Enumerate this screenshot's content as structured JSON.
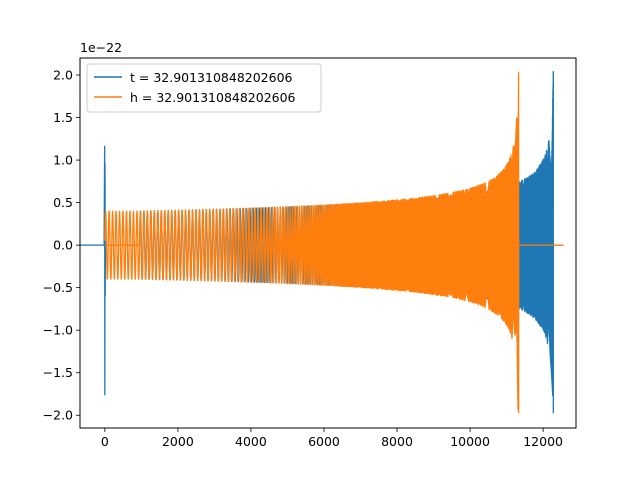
{
  "chart_data": {
    "type": "line",
    "title": "",
    "xlabel": "",
    "ylabel": "",
    "y_offset_label": "1e−22",
    "xlim": [
      -680,
      12900
    ],
    "ylim": [
      -2.15,
      2.2
    ],
    "x_ticks": [
      0,
      2000,
      4000,
      6000,
      8000,
      10000,
      12000
    ],
    "x_tick_labels": [
      "0",
      "2000",
      "4000",
      "6000",
      "8000",
      "10000",
      "12000"
    ],
    "y_ticks": [
      -2.0,
      -1.5,
      -1.0,
      -0.5,
      0.0,
      0.5,
      1.0,
      1.5,
      2.0
    ],
    "y_tick_labels": [
      "−2.0",
      "−1.5",
      "−1.0",
      "−0.5",
      "0.0",
      "0.5",
      "1.0",
      "1.5",
      "2.0"
    ],
    "grid": false,
    "legend_position": "top-left",
    "series": [
      {
        "name": "t = 32.901310848202606",
        "color": "#1f77b4",
        "description_points": {
          "initial_spike_x": 0,
          "initial_spike_max": 1.16,
          "initial_spike_min": -1.76,
          "start_x": 950,
          "base_amplitude": 0.4,
          "merger_x": 12280,
          "merger_peak": 2.04,
          "merger_trough": -1.97,
          "end_x": 12560,
          "end_value": 0.0
        }
      },
      {
        "name": "h = 32.901310848202606",
        "color": "#ff7f0e",
        "description_points": {
          "start_x": 0,
          "end_x": 12560,
          "base_amplitude": 0.4,
          "flat_from_x": 10,
          "flat_to_x": 950,
          "merger_x": 11330,
          "merger_peak": 2.03,
          "merger_trough": -1.97,
          "end_value": 0.0
        }
      }
    ]
  }
}
